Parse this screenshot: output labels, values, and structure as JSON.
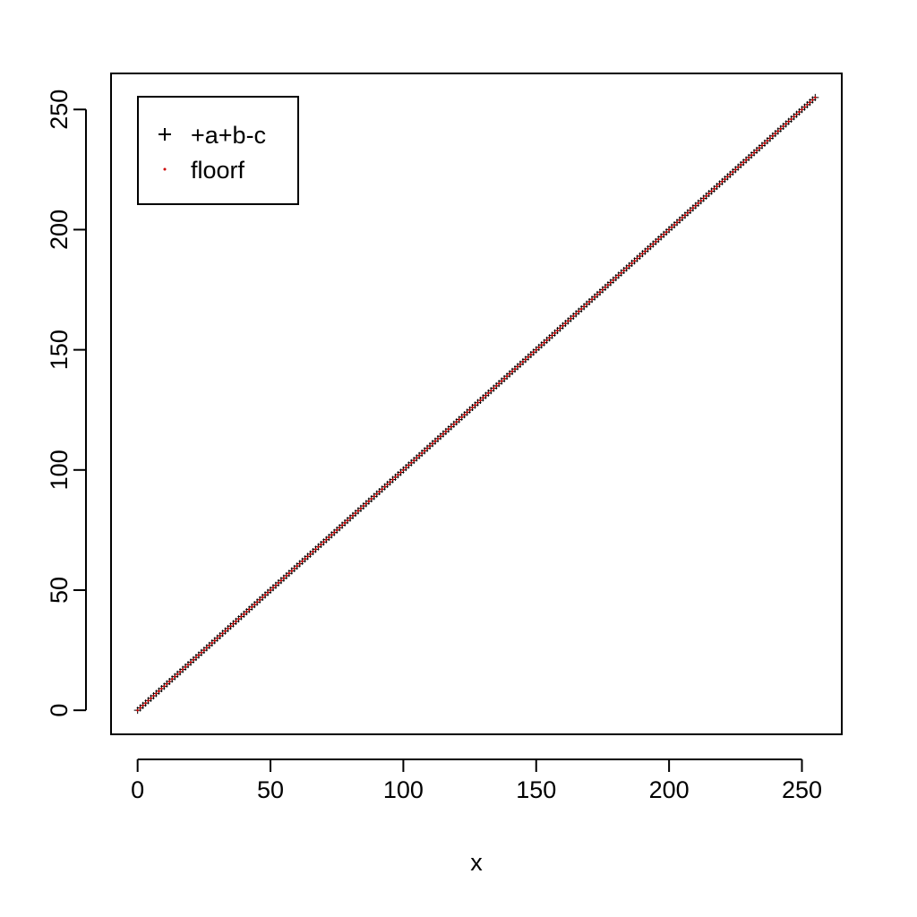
{
  "chart_data": {
    "type": "scatter",
    "xlabel": "x",
    "ylabel": "",
    "xlim": [
      -10,
      265
    ],
    "ylim": [
      -10,
      265
    ],
    "x_ticks": [
      0,
      50,
      100,
      150,
      200,
      250
    ],
    "y_ticks": [
      0,
      50,
      100,
      150,
      200,
      250
    ],
    "x_tick_labels": [
      "0",
      "50",
      "100",
      "150",
      "200",
      "250"
    ],
    "y_tick_labels": [
      "0",
      "50",
      "100",
      "150",
      "200",
      "250"
    ],
    "x": {
      "start": 0,
      "end": 255,
      "step": 1
    },
    "series": [
      {
        "name": "+a+b-c",
        "marker": "plus",
        "color": "#000000",
        "y_rule": "identity"
      },
      {
        "name": "floorf",
        "marker": "dot",
        "color": "#cc0000",
        "y_rule": "identity"
      }
    ],
    "legend_position": "top-left",
    "grid": false
  }
}
